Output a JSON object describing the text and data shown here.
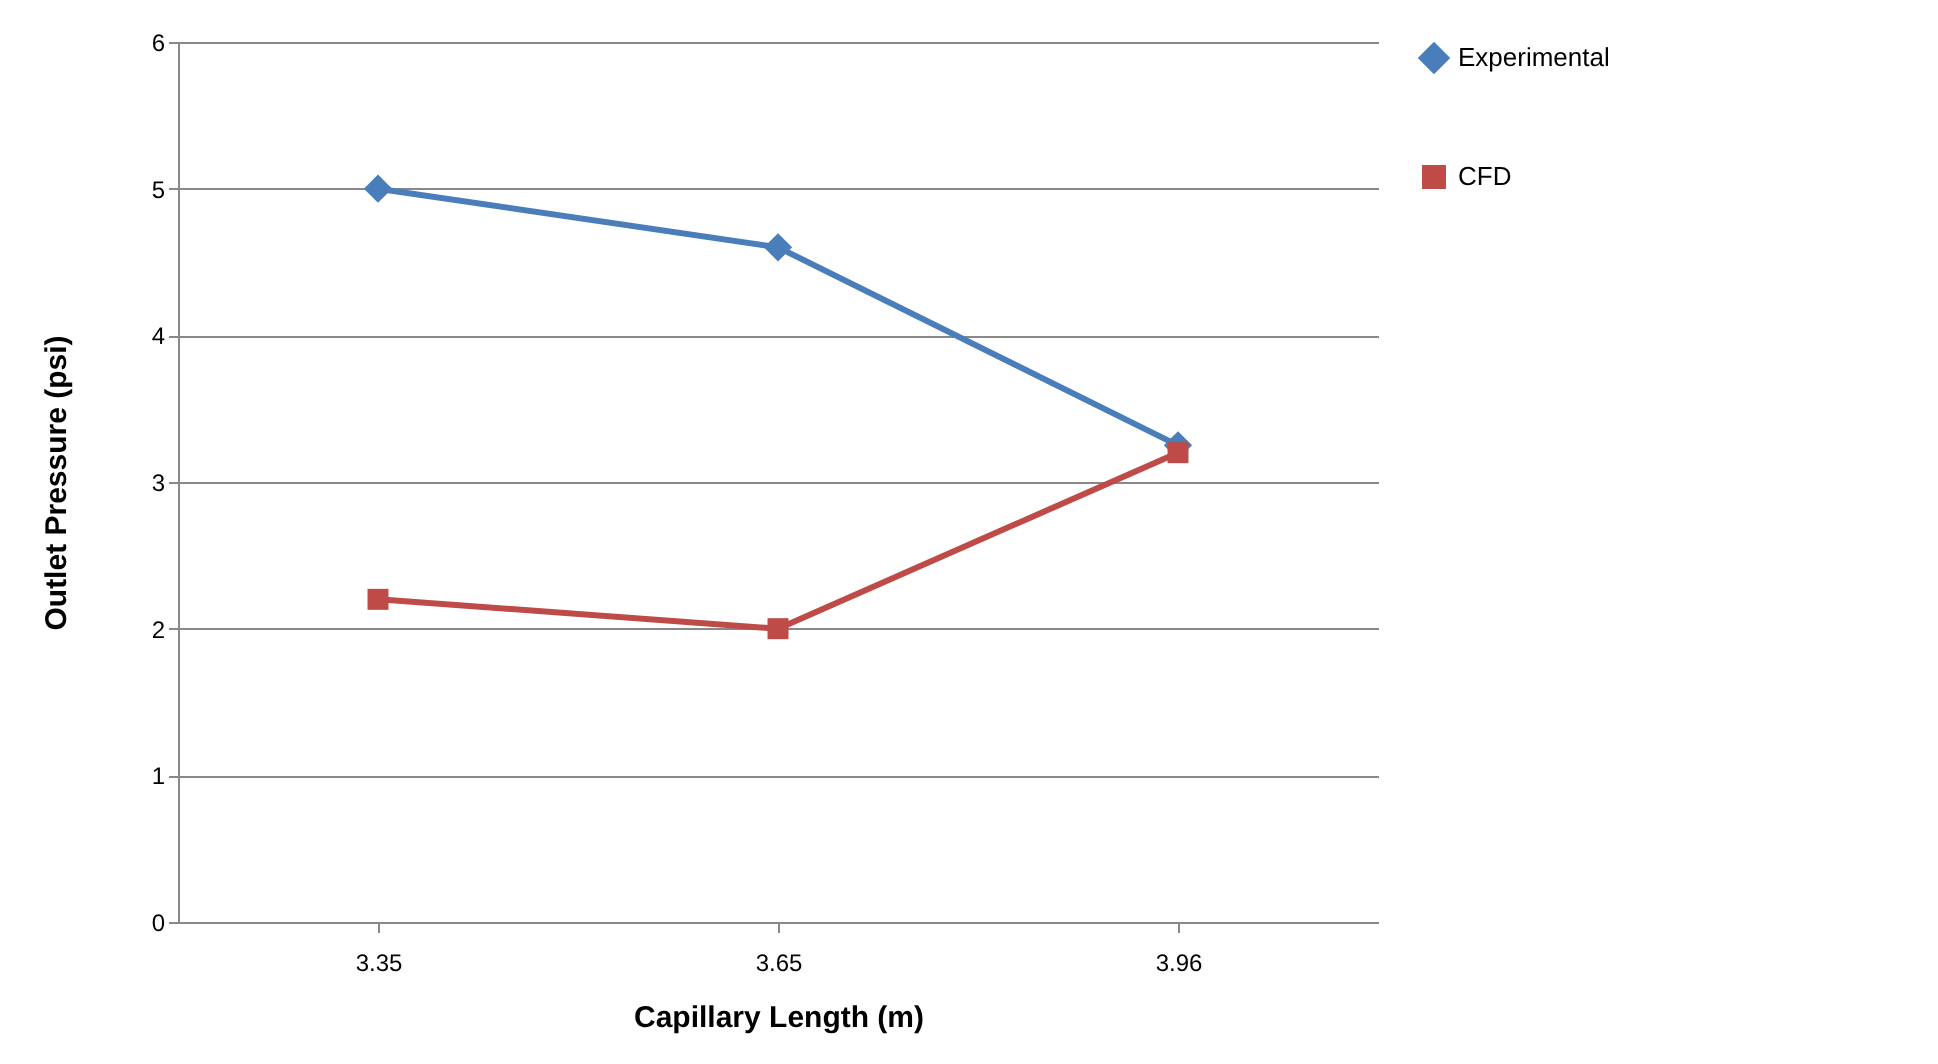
{
  "chart_data": {
    "type": "line",
    "xlabel": "Capillary Length (m)",
    "ylabel": "Outlet Pressure (psi)",
    "categories": [
      "3.35",
      "3.65",
      "3.96"
    ],
    "series": [
      {
        "name": "Experimental",
        "color": "#4a7ebb",
        "marker": "diamond",
        "values": [
          5.0,
          4.6,
          3.25
        ]
      },
      {
        "name": "CFD",
        "color": "#be4b48",
        "marker": "square",
        "values": [
          2.2,
          2.0,
          3.2
        ]
      }
    ],
    "ylim": [
      0,
      6
    ],
    "yticks": [
      0,
      1,
      2,
      3,
      4,
      5,
      6
    ],
    "grid": "y",
    "legend": "right",
    "line_style": "solid"
  }
}
